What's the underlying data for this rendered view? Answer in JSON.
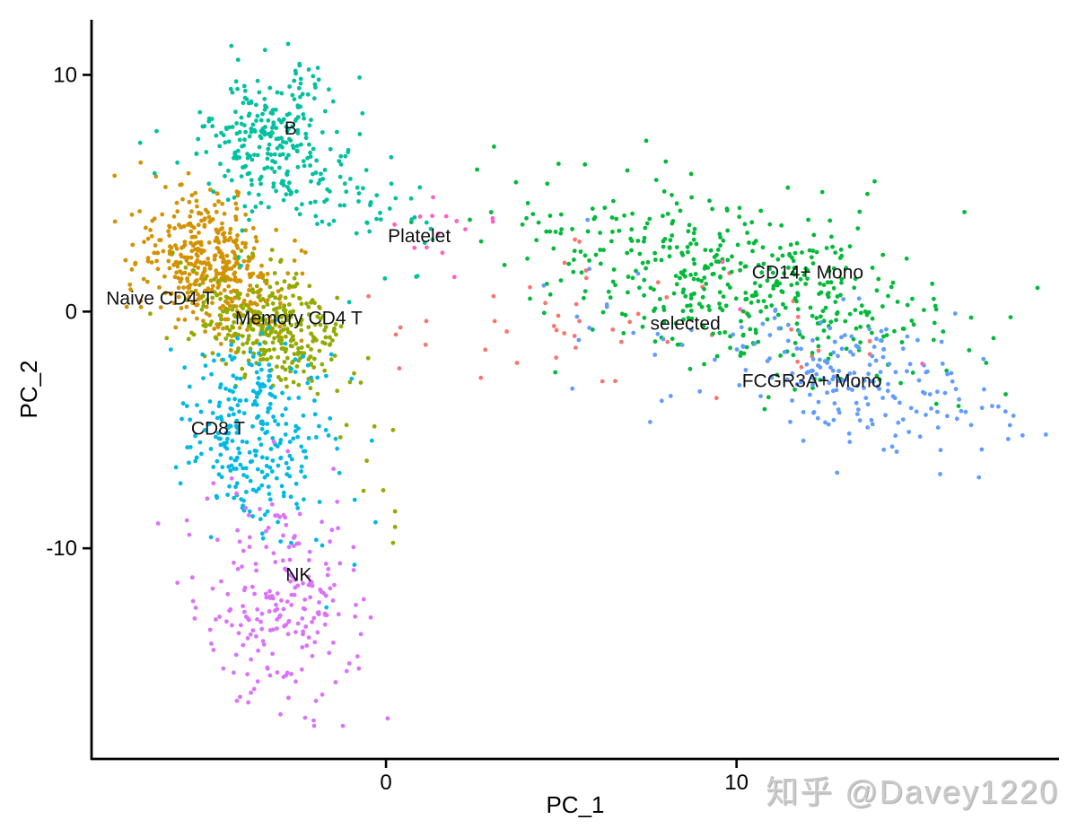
{
  "watermark": {
    "text": "知乎 @Davey1220",
    "color": "#c9c9c9"
  },
  "chart_data": {
    "type": "scatter",
    "title": "",
    "xlabel": "PC_1",
    "ylabel": "PC_2",
    "xlim": [
      -8.4,
      19.2
    ],
    "ylim": [
      -18.9,
      12.33
    ],
    "x_ticks": [
      {
        "label": "0",
        "value": 0
      },
      {
        "label": "10",
        "value": 10
      }
    ],
    "y_ticks": [
      {
        "label": "10",
        "value": 10
      },
      {
        "label": "0",
        "value": 0
      },
      {
        "label": "-10",
        "value": -10
      }
    ],
    "grid": false,
    "legend_position": "none",
    "point_radius_px": 2.4,
    "axis_color": "#000000",
    "label_color": "#111111",
    "series": [
      {
        "name": "selected",
        "color": "#F8766D",
        "label": {
          "text": "selected",
          "x": 8.54,
          "y": -0.49
        },
        "components": [
          {
            "n": 44,
            "cx": 7.2,
            "cy": -0.5,
            "sx": 3.0,
            "sy": 1.4,
            "rho": -0.2
          }
        ],
        "extras": [
          [
            0.41,
            -0.67
          ],
          [
            0.28,
            -0.97
          ],
          [
            1.15,
            -0.4
          ],
          [
            3.1,
            -0.4
          ],
          [
            1.13,
            -1.4
          ],
          [
            0.38,
            -2.4
          ],
          [
            13.8,
            -1.25
          ],
          [
            13.8,
            -1.8
          ],
          [
            -0.5,
            0.65
          ]
        ]
      },
      {
        "name": "Naive CD4 T",
        "color": "#D39200",
        "label": {
          "text": "Naive CD4 T",
          "x": -6.45,
          "y": 0.57
        },
        "components": [
          {
            "n": 430,
            "cx": -5.1,
            "cy": 2.0,
            "sx": 1.05,
            "sy": 1.5,
            "rho": -0.3
          }
        ],
        "extras": [
          [
            -2.3,
            2.5
          ],
          [
            -2.6,
            3.0
          ],
          [
            -7.4,
            0.2
          ]
        ]
      },
      {
        "name": "Memory CD4 T",
        "color": "#93AA00",
        "label": {
          "text": "Memory CD4 T",
          "x": -2.49,
          "y": -0.27
        },
        "components": [
          {
            "n": 330,
            "cx": -3.3,
            "cy": -0.7,
            "sx": 1.0,
            "sy": 1.3,
            "rho": -0.35
          }
        ],
        "extras": [
          [
            0.2,
            -5.0
          ],
          [
            -0.33,
            -4.85
          ],
          [
            -0.08,
            -7.55
          ],
          [
            -0.64,
            -7.57
          ],
          [
            0.26,
            -8.44
          ],
          [
            0.26,
            -9.1
          ],
          [
            0.2,
            -9.77
          ],
          [
            -0.55,
            -6.3
          ]
        ]
      },
      {
        "name": "CD14+ Mono",
        "color": "#00BA38",
        "label": {
          "text": "CD14+ Mono",
          "x": 12.03,
          "y": 1.67
        },
        "components": [
          {
            "n": 470,
            "cx": 10.2,
            "cy": 1.2,
            "sx": 3.2,
            "sy": 2.0,
            "rho": -0.5
          }
        ],
        "extras": [
          [
            3.08,
            6.97
          ],
          [
            2.6,
            6.0
          ],
          [
            4.6,
            5.4
          ],
          [
            3.0,
            4.2
          ],
          [
            15.7,
            -3.9
          ]
        ]
      },
      {
        "name": "B",
        "color": "#00C19F",
        "label": {
          "text": "B",
          "x": -2.72,
          "y": 7.74
        },
        "components": [
          {
            "n": 250,
            "cx": -3.35,
            "cy": 7.4,
            "sx": 1.1,
            "sy": 1.5,
            "rho": 0.1
          },
          {
            "n": 70,
            "cx": -1.2,
            "cy": 5.0,
            "sx": 1.2,
            "sy": 1.2,
            "rho": -0.55
          }
        ],
        "extras": [
          [
            -0.03,
            1.4
          ],
          [
            -1.05,
            0.4
          ],
          [
            0.9,
            1.5
          ],
          [
            -4.2,
            2.3
          ],
          [
            0.86,
            1.47
          ],
          [
            -3.45,
            11.05
          ]
        ]
      },
      {
        "name": "CD8 T",
        "color": "#00B9E3",
        "label": {
          "text": "CD8 T",
          "x": -4.79,
          "y": -4.93
        },
        "components": [
          {
            "n": 290,
            "cx": -3.7,
            "cy": -5.0,
            "sx": 1.05,
            "sy": 2.0,
            "rho": -0.1
          }
        ],
        "extras": [
          [
            -1.7,
            -12.5
          ],
          [
            -0.9,
            -10.7
          ],
          [
            -0.3,
            -8.9
          ]
        ]
      },
      {
        "name": "FCGR3A+ Mono",
        "color": "#619CFF",
        "label": {
          "text": "FCGR3A+ Mono",
          "x": 12.15,
          "y": -2.92
        },
        "components": [
          {
            "n": 185,
            "cx": 13.6,
            "cy": -3.0,
            "sx": 1.9,
            "sy": 1.35,
            "rho": -0.35
          },
          {
            "n": 20,
            "cx": 8.5,
            "cy": -1.2,
            "sx": 1.7,
            "sy": 1.4,
            "rho": -0.3
          }
        ],
        "extras": [
          [
            4.5,
            1.1
          ],
          [
            5.8,
            1.8
          ],
          [
            5.5,
            -1.2
          ],
          [
            6.3,
            0.2
          ],
          [
            6.3,
            0.3
          ],
          [
            17.8,
            -4.8
          ],
          [
            17.9,
            -4.4
          ]
        ]
      },
      {
        "name": "NK",
        "color": "#DB72FB",
        "label": {
          "text": "NK",
          "x": -2.49,
          "y": -11.12
        },
        "components": [
          {
            "n": 215,
            "cx": -2.9,
            "cy": -12.3,
            "sx": 1.1,
            "sy": 2.0,
            "rho": -0.15
          }
        ],
        "extras": [
          [
            -3.2,
            -5.5
          ],
          [
            -2.8,
            -5.9
          ],
          [
            -5.1,
            -7.9
          ],
          [
            -4.4,
            -7.05
          ],
          [
            -4.0,
            -8.3
          ],
          [
            -6.5,
            -8.95
          ],
          [
            -2.05,
            -17.5
          ],
          [
            -1.23,
            -17.5
          ]
        ]
      },
      {
        "name": "Platelet",
        "color": "#FF61C3",
        "label": {
          "text": "Platelet",
          "x": 0.95,
          "y": 3.19
        },
        "components": [
          {
            "n": 13,
            "cx": 1.6,
            "cy": 4.0,
            "sx": 0.5,
            "sy": 0.85,
            "rho": 0
          }
        ],
        "extras": [
          [
            3.05,
            3.8
          ],
          [
            15.3,
            -2.2
          ],
          [
            10.1,
            0.1
          ],
          [
            9.6,
            2.1
          ]
        ]
      }
    ]
  }
}
